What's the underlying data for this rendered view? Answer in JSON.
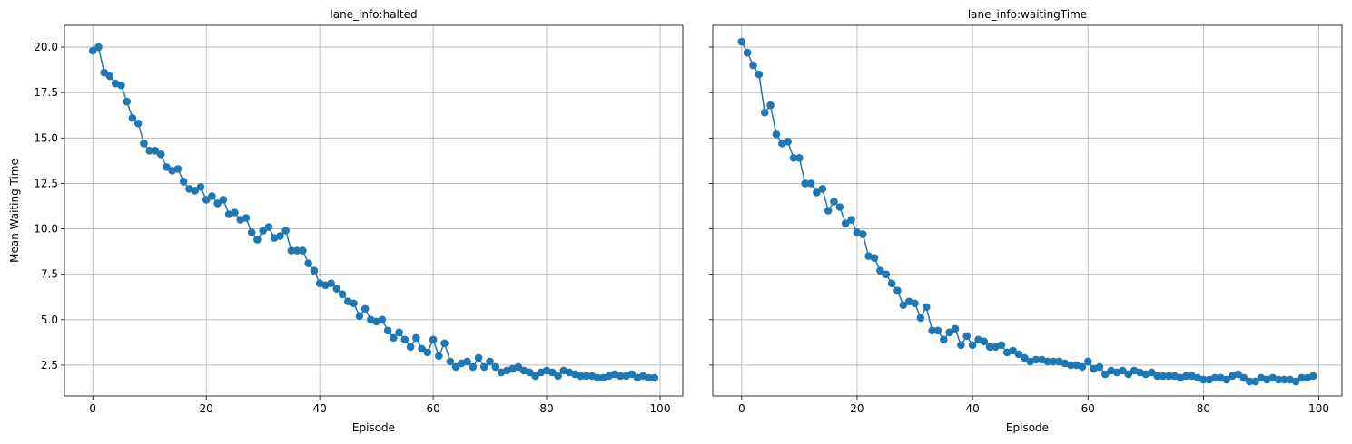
{
  "chart_data": [
    {
      "type": "line",
      "title": "lane_info:halted",
      "xlabel": "Episode",
      "ylabel": "Mean Waiting Time",
      "xlim": [
        -5,
        104
      ],
      "ylim": [
        0.8,
        21.2
      ],
      "xticks": [
        0,
        20,
        40,
        60,
        80,
        100
      ],
      "yticks": [
        2.5,
        5.0,
        7.5,
        10.0,
        12.5,
        15.0,
        17.5,
        20.0
      ],
      "grid": true,
      "color": "#1f77b4",
      "marker": "circle",
      "series": [
        {
          "values": [
            19.8,
            20.0,
            18.6,
            18.4,
            18.0,
            17.9,
            17.0,
            16.1,
            15.8,
            14.7,
            14.3,
            14.3,
            14.1,
            13.4,
            13.2,
            13.3,
            12.6,
            12.2,
            12.1,
            12.3,
            11.6,
            11.8,
            11.4,
            11.6,
            10.8,
            10.9,
            10.5,
            10.6,
            9.8,
            9.4,
            9.9,
            10.1,
            9.5,
            9.6,
            9.9,
            8.8,
            8.8,
            8.8,
            8.1,
            7.7,
            7.0,
            6.9,
            7.0,
            6.7,
            6.4,
            6.0,
            5.9,
            5.2,
            5.6,
            5.0,
            4.9,
            5.0,
            4.4,
            4.0,
            4.3,
            3.9,
            3.5,
            4.0,
            3.4,
            3.2,
            3.9,
            3.0,
            3.7,
            2.7,
            2.4,
            2.6,
            2.7,
            2.4,
            2.9,
            2.4,
            2.7,
            2.4,
            2.1,
            2.2,
            2.3,
            2.4,
            2.2,
            2.1,
            1.9,
            2.1,
            2.2,
            2.1,
            1.9,
            2.2,
            2.1,
            2.0,
            1.9,
            1.9,
            1.9,
            1.8,
            1.8,
            1.9,
            2.0,
            1.9,
            1.9,
            2.0,
            1.8,
            1.9,
            1.8,
            1.8
          ]
        }
      ]
    },
    {
      "type": "line",
      "title": "lane_info:waitingTime",
      "xlabel": "Episode",
      "ylabel": "",
      "xlim": [
        -5,
        104
      ],
      "ylim": [
        0.8,
        21.2
      ],
      "xticks": [
        0,
        20,
        40,
        60,
        80,
        100
      ],
      "yticks": [
        2.5,
        5.0,
        7.5,
        10.0,
        12.5,
        15.0,
        17.5,
        20.0
      ],
      "grid": true,
      "color": "#1f77b4",
      "marker": "circle",
      "series": [
        {
          "values": [
            20.3,
            19.7,
            19.0,
            18.5,
            16.4,
            16.8,
            15.2,
            14.7,
            14.8,
            13.9,
            13.9,
            12.5,
            12.5,
            12.0,
            12.2,
            11.0,
            11.5,
            11.2,
            10.3,
            10.5,
            9.8,
            9.7,
            8.5,
            8.4,
            7.7,
            7.5,
            7.0,
            6.6,
            5.8,
            6.0,
            5.9,
            5.1,
            5.7,
            4.4,
            4.4,
            3.9,
            4.3,
            4.5,
            3.6,
            4.1,
            3.6,
            3.9,
            3.8,
            3.5,
            3.5,
            3.6,
            3.2,
            3.3,
            3.1,
            2.9,
            2.7,
            2.8,
            2.8,
            2.7,
            2.7,
            2.7,
            2.6,
            2.5,
            2.5,
            2.4,
            2.7,
            2.3,
            2.4,
            2.0,
            2.2,
            2.1,
            2.2,
            2.0,
            2.2,
            2.1,
            2.0,
            2.1,
            1.9,
            1.9,
            1.9,
            1.9,
            1.8,
            1.9,
            1.9,
            1.8,
            1.7,
            1.7,
            1.8,
            1.8,
            1.7,
            1.9,
            2.0,
            1.8,
            1.6,
            1.6,
            1.8,
            1.7,
            1.8,
            1.7,
            1.7,
            1.7,
            1.6,
            1.8,
            1.8,
            1.9
          ]
        }
      ]
    }
  ]
}
